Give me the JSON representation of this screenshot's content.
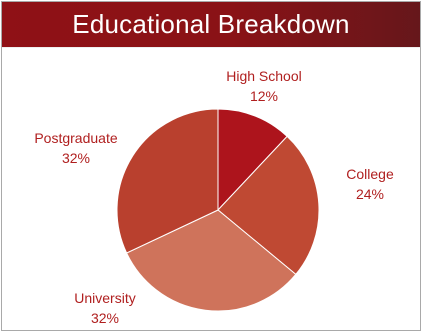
{
  "header": {
    "title": "Educational Breakdown"
  },
  "chart_data": {
    "type": "pie",
    "title": "Educational Breakdown",
    "slices": [
      {
        "label": "High School",
        "value": 12,
        "display": "12%",
        "color": "#ad141c"
      },
      {
        "label": "College",
        "value": 24,
        "display": "24%",
        "color": "#bf4933"
      },
      {
        "label": "University",
        "value": 32,
        "display": "32%",
        "color": "#cf735b"
      },
      {
        "label": "Postgraduate",
        "value": 32,
        "display": "32%",
        "color": "#b9402e"
      }
    ]
  }
}
